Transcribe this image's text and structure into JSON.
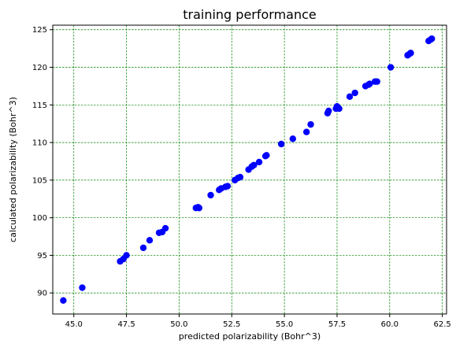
{
  "chart_data": {
    "type": "scatter",
    "title": "training performance",
    "xlabel": "predicted polarizability (Bohr^3)",
    "ylabel": "calculated polarizability (Bohr^3)",
    "xlim": [
      44.0,
      62.7
    ],
    "ylim": [
      87.2,
      125.6
    ],
    "xticks": [
      45.0,
      47.5,
      50.0,
      52.5,
      55.0,
      57.5,
      60.0,
      62.5
    ],
    "xtick_labels": [
      "45.0",
      "47.5",
      "50.0",
      "52.5",
      "55.0",
      "57.5",
      "60.0",
      "62.5"
    ],
    "yticks": [
      90,
      95,
      100,
      105,
      110,
      115,
      120,
      125
    ],
    "ytick_labels": [
      "90",
      "95",
      "100",
      "105",
      "110",
      "115",
      "120",
      "125"
    ],
    "grid": true,
    "grid_color": "#008000",
    "marker_color": "#0000ff",
    "legend": "none",
    "points": [
      [
        44.5,
        89.0
      ],
      [
        45.4,
        90.7
      ],
      [
        47.2,
        94.2
      ],
      [
        47.35,
        94.5
      ],
      [
        47.5,
        95.0
      ],
      [
        48.3,
        96.0
      ],
      [
        48.6,
        97.0
      ],
      [
        49.05,
        98.0
      ],
      [
        49.2,
        98.1
      ],
      [
        49.35,
        98.6
      ],
      [
        50.8,
        101.3
      ],
      [
        50.9,
        101.4
      ],
      [
        50.95,
        101.3
      ],
      [
        51.5,
        103.0
      ],
      [
        51.9,
        103.7
      ],
      [
        52.0,
        103.9
      ],
      [
        52.2,
        104.1
      ],
      [
        52.3,
        104.2
      ],
      [
        52.65,
        105.0
      ],
      [
        52.8,
        105.3
      ],
      [
        52.9,
        105.4
      ],
      [
        53.3,
        106.4
      ],
      [
        53.45,
        106.8
      ],
      [
        53.55,
        107.0
      ],
      [
        53.8,
        107.4
      ],
      [
        54.1,
        108.2
      ],
      [
        54.15,
        108.3
      ],
      [
        54.85,
        109.8
      ],
      [
        55.4,
        110.5
      ],
      [
        56.05,
        111.4
      ],
      [
        56.25,
        112.4
      ],
      [
        57.05,
        113.9
      ],
      [
        57.1,
        114.2
      ],
      [
        57.45,
        114.5
      ],
      [
        57.5,
        114.8
      ],
      [
        57.55,
        114.6
      ],
      [
        57.6,
        114.5
      ],
      [
        58.1,
        116.1
      ],
      [
        58.35,
        116.6
      ],
      [
        58.85,
        117.5
      ],
      [
        59.0,
        117.7
      ],
      [
        59.05,
        117.8
      ],
      [
        59.3,
        118.1
      ],
      [
        59.4,
        118.1
      ],
      [
        60.05,
        120.0
      ],
      [
        60.85,
        121.6
      ],
      [
        60.95,
        121.8
      ],
      [
        61.0,
        121.9
      ],
      [
        61.85,
        123.5
      ],
      [
        61.95,
        123.7
      ],
      [
        62.0,
        123.8
      ]
    ]
  }
}
